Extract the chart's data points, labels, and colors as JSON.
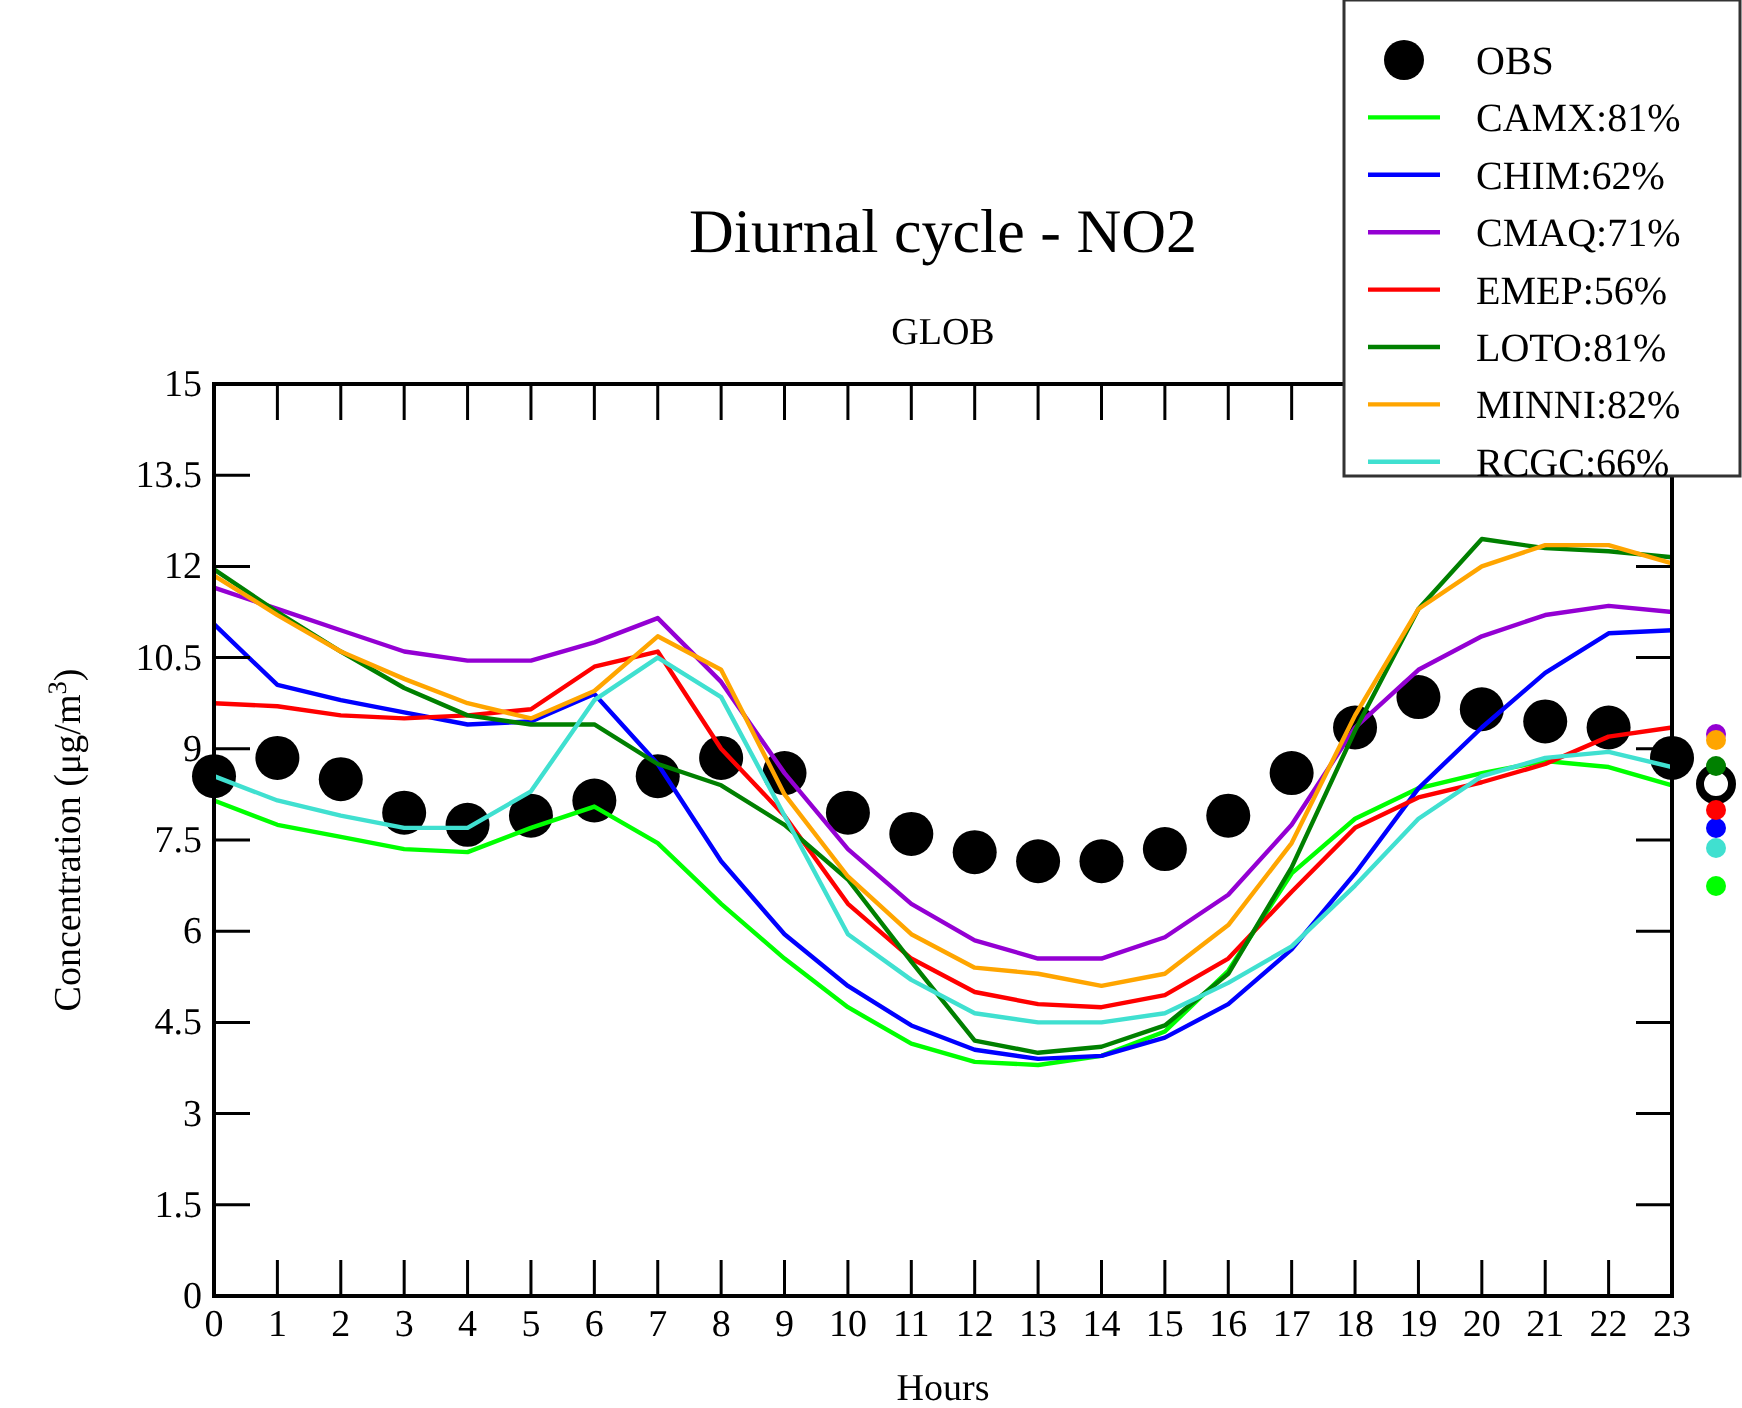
{
  "chart_data": {
    "type": "line",
    "title": "Diurnal cycle - NO2",
    "subtitle": "GLOB",
    "xlabel": "Hours",
    "ylabel": "Concentration (μg/m$^{3}$)",
    "x": [
      0,
      1,
      2,
      3,
      4,
      5,
      6,
      7,
      8,
      9,
      10,
      11,
      12,
      13,
      14,
      15,
      16,
      17,
      18,
      19,
      20,
      21,
      22,
      23
    ],
    "xlim": [
      0,
      23
    ],
    "xticks": [
      0,
      1,
      2,
      3,
      4,
      5,
      6,
      7,
      8,
      9,
      10,
      11,
      12,
      13,
      14,
      15,
      16,
      17,
      18,
      19,
      20,
      21,
      22,
      23
    ],
    "ylim": [
      0,
      15
    ],
    "yticks": [
      0,
      1.5,
      3,
      4.5,
      6,
      7.5,
      9,
      10.5,
      12,
      13.5,
      15
    ],
    "legend": "top right",
    "grid": false,
    "series": [
      {
        "name": "OBS",
        "type": "scatter",
        "marker": "circle",
        "color": "#000000",
        "values": [
          8.55,
          8.85,
          8.5,
          7.95,
          7.75,
          7.9,
          8.15,
          8.55,
          8.85,
          8.6,
          7.95,
          7.6,
          7.3,
          7.15,
          7.15,
          7.35,
          7.9,
          8.6,
          9.35,
          9.85,
          9.65,
          9.45,
          9.35,
          8.85
        ]
      },
      {
        "name": "CAMX:81%",
        "color": "#00ff00",
        "values": [
          8.15,
          7.75,
          7.55,
          7.35,
          7.3,
          7.7,
          8.05,
          7.45,
          6.45,
          5.55,
          4.75,
          4.15,
          3.85,
          3.8,
          3.95,
          4.35,
          5.35,
          6.95,
          7.85,
          8.35,
          8.6,
          8.8,
          8.7,
          8.4
        ]
      },
      {
        "name": "CHIM:62%",
        "color": "#0000ff",
        "values": [
          11.05,
          10.05,
          9.8,
          9.6,
          9.4,
          9.45,
          9.9,
          8.75,
          7.15,
          5.95,
          5.1,
          4.45,
          4.05,
          3.9,
          3.95,
          4.25,
          4.8,
          5.7,
          6.95,
          8.35,
          9.35,
          10.25,
          10.9,
          10.95
        ]
      },
      {
        "name": "CMAQ:71%",
        "color": "#9400d3",
        "values": [
          11.65,
          11.3,
          10.95,
          10.6,
          10.45,
          10.45,
          10.75,
          11.15,
          10.1,
          8.6,
          7.35,
          6.45,
          5.85,
          5.55,
          5.55,
          5.9,
          6.6,
          7.75,
          9.35,
          10.3,
          10.85,
          11.2,
          11.35,
          11.25
        ]
      },
      {
        "name": "EMEP:56%",
        "color": "#ff0000",
        "values": [
          9.75,
          9.7,
          9.55,
          9.5,
          9.55,
          9.65,
          10.35,
          10.6,
          9.0,
          7.9,
          6.45,
          5.55,
          5.0,
          4.8,
          4.75,
          4.95,
          5.55,
          6.65,
          7.7,
          8.2,
          8.45,
          8.75,
          9.2,
          9.35
        ]
      },
      {
        "name": "LOTO:81%",
        "color": "#008000",
        "values": [
          11.95,
          11.25,
          10.6,
          10.0,
          9.55,
          9.4,
          9.4,
          8.75,
          8.4,
          7.75,
          6.85,
          5.5,
          4.2,
          4.0,
          4.1,
          4.45,
          5.3,
          7.05,
          9.3,
          11.3,
          12.45,
          12.3,
          12.25,
          12.15
        ]
      },
      {
        "name": "MINNI:82%",
        "color": "#ffa500",
        "values": [
          11.85,
          11.2,
          10.6,
          10.15,
          9.75,
          9.5,
          9.95,
          10.85,
          10.3,
          8.25,
          6.9,
          5.95,
          5.4,
          5.3,
          5.1,
          5.3,
          6.1,
          7.45,
          9.55,
          11.3,
          12.0,
          12.35,
          12.35,
          12.05
        ]
      },
      {
        "name": "RCGC:66%",
        "color": "#40e0d0",
        "values": [
          8.55,
          8.15,
          7.9,
          7.7,
          7.7,
          8.3,
          9.8,
          10.5,
          9.85,
          7.9,
          5.95,
          5.2,
          4.65,
          4.5,
          4.5,
          4.65,
          5.15,
          5.75,
          6.75,
          7.85,
          8.55,
          8.85,
          8.95,
          8.7
        ]
      }
    ]
  }
}
